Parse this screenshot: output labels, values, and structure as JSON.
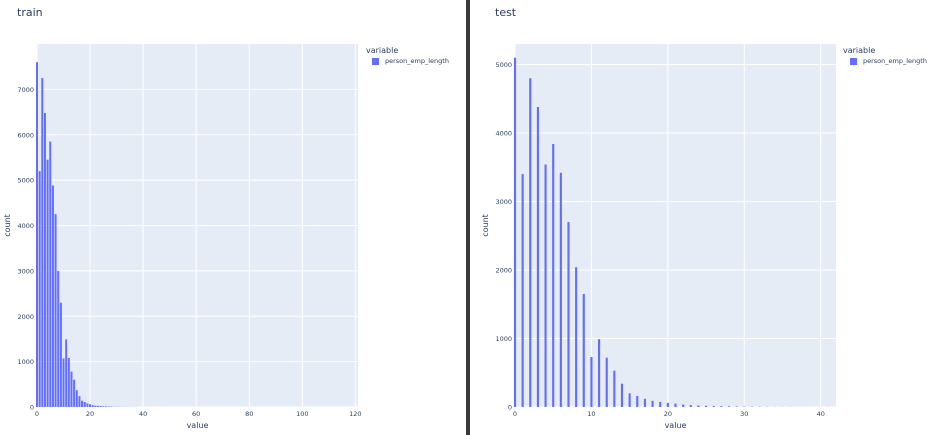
{
  "legend": {
    "title": "variable",
    "series_name": "person_emp_length"
  },
  "colors": {
    "bar": "#636efa",
    "plot_bg": "#e5ecf6",
    "grid": "#ffffff",
    "text": "#2a3f5f"
  },
  "chart_data": [
    {
      "type": "bar",
      "title": "train",
      "xlabel": "value",
      "ylabel": "count",
      "xlim": [
        0,
        121
      ],
      "ylim": [
        0,
        8000
      ],
      "xticks": [
        0,
        20,
        40,
        60,
        80,
        100,
        120
      ],
      "yticks": [
        0,
        1000,
        2000,
        3000,
        4000,
        5000,
        6000,
        7000
      ],
      "legend_position": "right",
      "grid": true,
      "series": [
        {
          "name": "person_emp_length",
          "x": [
            0,
            1,
            2,
            3,
            4,
            5,
            6,
            7,
            8,
            9,
            10,
            11,
            12,
            13,
            14,
            15,
            16,
            17,
            18,
            19,
            20,
            21,
            22,
            23,
            24,
            25,
            26,
            27,
            28,
            29,
            30,
            31,
            32,
            33,
            34,
            35,
            36,
            37,
            38,
            41,
            123
          ],
          "values": [
            7600,
            5200,
            7250,
            6480,
            5450,
            5850,
            4880,
            4250,
            3000,
            2300,
            1070,
            1490,
            1080,
            780,
            600,
            370,
            240,
            140,
            110,
            80,
            60,
            40,
            30,
            25,
            20,
            15,
            12,
            10,
            8,
            6,
            5,
            4,
            3,
            3,
            2,
            2,
            2,
            2,
            1,
            1,
            2
          ]
        }
      ]
    },
    {
      "type": "bar",
      "title": "test",
      "xlabel": "value",
      "ylabel": "count",
      "xlim": [
        0,
        42
      ],
      "ylim": [
        0,
        5300
      ],
      "xticks": [
        0,
        10,
        20,
        30,
        40
      ],
      "yticks": [
        0,
        1000,
        2000,
        3000,
        4000,
        5000
      ],
      "legend_position": "right",
      "grid": true,
      "series": [
        {
          "name": "person_emp_length",
          "x": [
            0,
            1,
            2,
            3,
            4,
            5,
            6,
            7,
            8,
            9,
            10,
            11,
            12,
            13,
            14,
            15,
            16,
            17,
            18,
            19,
            20,
            21,
            22,
            23,
            24,
            25,
            26,
            27,
            28,
            29,
            30,
            31,
            32,
            33,
            34,
            35,
            36,
            37,
            38,
            41
          ],
          "values": [
            5100,
            3400,
            4800,
            4380,
            3540,
            3840,
            3420,
            2700,
            2040,
            1650,
            730,
            990,
            720,
            530,
            340,
            200,
            160,
            120,
            90,
            75,
            60,
            50,
            35,
            28,
            22,
            18,
            14,
            12,
            10,
            8,
            6,
            5,
            4,
            3,
            2,
            2,
            2,
            1,
            1,
            1
          ]
        }
      ]
    }
  ]
}
